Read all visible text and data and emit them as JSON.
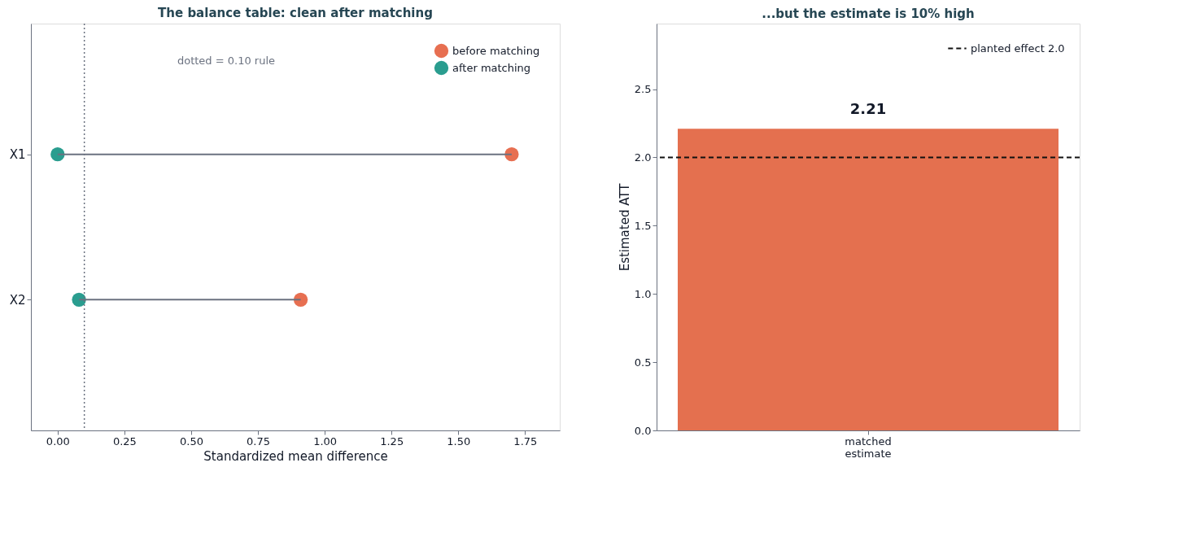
{
  "chart_data": [
    {
      "type": "scatter",
      "title": "The balance table: clean after matching",
      "xlabel": "Standardized mean difference",
      "categories": [
        "X1",
        "X2"
      ],
      "orientation": "horizontal",
      "series": [
        {
          "name": "before matching",
          "color": "#e76f51",
          "values": [
            1.7,
            0.91
          ]
        },
        {
          "name": "after matching",
          "color": "#2a9d8f",
          "values": [
            0.0,
            0.08
          ]
        }
      ],
      "xlim": [
        -0.1,
        1.88
      ],
      "xticks": [
        {
          "value": 0,
          "label": "0.00"
        },
        {
          "value": 0.25,
          "label": "0.25"
        },
        {
          "value": 0.5,
          "label": "0.50"
        },
        {
          "value": 0.75,
          "label": "0.75"
        },
        {
          "value": 1,
          "label": "1.00"
        },
        {
          "value": 1.25,
          "label": "1.25"
        },
        {
          "value": 1.5,
          "label": "1.50"
        },
        {
          "value": 1.75,
          "label": "1.75"
        }
      ],
      "ref_lines": [
        {
          "axis": "x",
          "value": 0.1,
          "color": "#6b7280",
          "line_style": "dotted"
        }
      ],
      "annotations": [
        "dotted = 0.10 rule"
      ],
      "marker": "circle",
      "legend": "top right",
      "grid": false
    },
    {
      "type": "bar",
      "title": "...but the estimate is 10% high",
      "ylabel": "Estimated ATT",
      "categories": [
        "matched estimate"
      ],
      "values": [
        2.21
      ],
      "color": "#e4704f",
      "data_labels": true,
      "ylim": [
        0,
        2.98
      ],
      "yticks": [
        {
          "value": 0,
          "label": "0.0"
        },
        {
          "value": 0.5,
          "label": "0.5"
        },
        {
          "value": 1,
          "label": "1.0"
        },
        {
          "value": 1.5,
          "label": "1.5"
        },
        {
          "value": 2,
          "label": "2.0"
        },
        {
          "value": 2.5,
          "label": "2.5"
        }
      ],
      "ref_lines": [
        {
          "axis": "y",
          "value": 2.0,
          "label": "planted effect 2.0",
          "color": "#111111",
          "line_style": "dashed"
        }
      ],
      "legend": "top right",
      "grid": false
    }
  ]
}
